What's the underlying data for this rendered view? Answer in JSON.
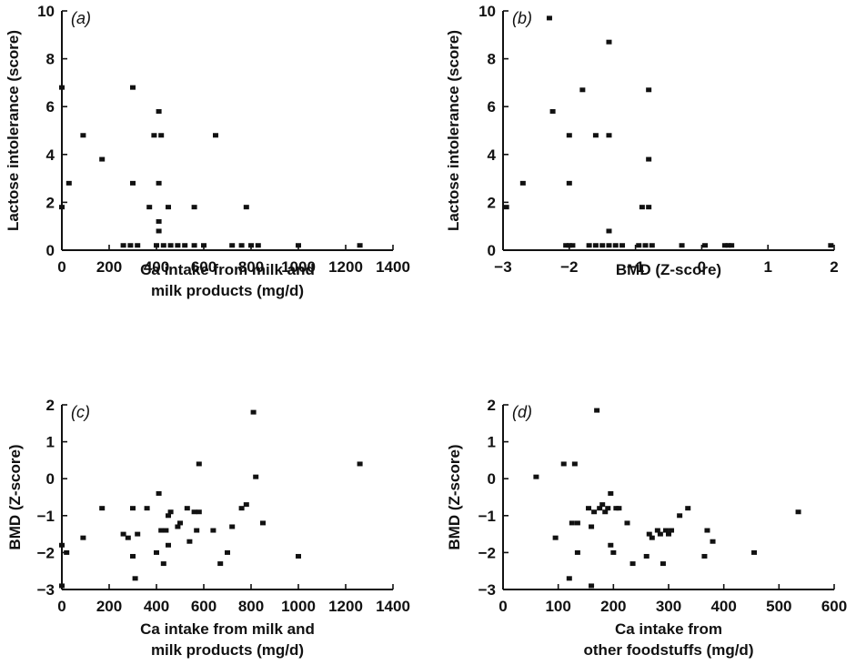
{
  "chart_data": [
    {
      "panel": "(a)",
      "type": "scatter",
      "xlabel": [
        "Ca intake from milk and",
        "milk products (mg/d)"
      ],
      "ylabel": "Lactose intolerance (score)",
      "xlim": [
        0,
        1400
      ],
      "ylim": [
        0,
        10
      ],
      "xticks": [
        0,
        200,
        400,
        600,
        800,
        1000,
        1200,
        1400
      ],
      "yticks": [
        0,
        2,
        4,
        6,
        8,
        10
      ],
      "points": [
        [
          0,
          6.8
        ],
        [
          0,
          1.8
        ],
        [
          30,
          2.8
        ],
        [
          90,
          4.8
        ],
        [
          170,
          3.8
        ],
        [
          300,
          6.8
        ],
        [
          300,
          2.8
        ],
        [
          390,
          4.8
        ],
        [
          410,
          5.8
        ],
        [
          410,
          2.8
        ],
        [
          420,
          4.8
        ],
        [
          410,
          0.8
        ],
        [
          410,
          1.2
        ],
        [
          370,
          1.8
        ],
        [
          450,
          1.8
        ],
        [
          560,
          1.8
        ],
        [
          650,
          4.8
        ],
        [
          780,
          1.8
        ],
        [
          260,
          0.2
        ],
        [
          290,
          0.2
        ],
        [
          320,
          0.2
        ],
        [
          400,
          0.2
        ],
        [
          430,
          0.2
        ],
        [
          460,
          0.2
        ],
        [
          490,
          0.2
        ],
        [
          520,
          0.2
        ],
        [
          560,
          0.2
        ],
        [
          600,
          0.2
        ],
        [
          720,
          0.2
        ],
        [
          760,
          0.2
        ],
        [
          800,
          0.2
        ],
        [
          830,
          0.2
        ],
        [
          1000,
          0.2
        ],
        [
          1260,
          0.2
        ]
      ]
    },
    {
      "panel": "(b)",
      "type": "scatter",
      "xlabel": [
        "BMD (Z-score)"
      ],
      "ylabel": "Lactose intolerance (score)",
      "xlim": [
        -3,
        2
      ],
      "ylim": [
        0,
        10
      ],
      "xticks": [
        -3,
        -2,
        -1,
        0,
        1,
        2
      ],
      "yticks": [
        0,
        2,
        4,
        6,
        8,
        10
      ],
      "points": [
        [
          -2.3,
          9.7
        ],
        [
          -1.4,
          8.7
        ],
        [
          -2.25,
          5.8
        ],
        [
          -1.8,
          6.7
        ],
        [
          -0.8,
          6.7
        ],
        [
          -2,
          4.8
        ],
        [
          -1.6,
          4.8
        ],
        [
          -1.4,
          4.8
        ],
        [
          -0.8,
          3.8
        ],
        [
          -2.7,
          2.8
        ],
        [
          -2,
          2.8
        ],
        [
          -2.95,
          1.8
        ],
        [
          -0.9,
          1.8
        ],
        [
          -0.8,
          1.8
        ],
        [
          -1.4,
          0.8
        ],
        [
          -2.05,
          0.2
        ],
        [
          -2,
          0.2
        ],
        [
          -1.95,
          0.2
        ],
        [
          -1.7,
          0.2
        ],
        [
          -1.6,
          0.2
        ],
        [
          -1.5,
          0.2
        ],
        [
          -1.4,
          0.2
        ],
        [
          -1.3,
          0.2
        ],
        [
          -1.2,
          0.2
        ],
        [
          -0.95,
          0.2
        ],
        [
          -0.85,
          0.2
        ],
        [
          -0.75,
          0.2
        ],
        [
          -0.3,
          0.2
        ],
        [
          0.05,
          0.2
        ],
        [
          0.35,
          0.2
        ],
        [
          0.4,
          0.2
        ],
        [
          0.45,
          0.2
        ],
        [
          1.95,
          0.2
        ]
      ]
    },
    {
      "panel": "(c)",
      "type": "scatter",
      "xlabel": [
        "Ca intake from milk and",
        "milk products (mg/d)"
      ],
      "ylabel": "BMD (Z-score)",
      "xlim": [
        0,
        1400
      ],
      "ylim": [
        -3,
        2
      ],
      "xticks": [
        0,
        200,
        400,
        600,
        800,
        1000,
        1200,
        1400
      ],
      "yticks": [
        -3,
        -2,
        -1,
        0,
        1,
        2
      ],
      "points": [
        [
          0,
          -2.9
        ],
        [
          0,
          -1.8
        ],
        [
          20,
          -2.0
        ],
        [
          90,
          -1.6
        ],
        [
          170,
          -0.8
        ],
        [
          260,
          -1.5
        ],
        [
          280,
          -1.6
        ],
        [
          300,
          -0.8
        ],
        [
          300,
          -2.1
        ],
        [
          310,
          -2.7
        ],
        [
          320,
          -1.5
        ],
        [
          360,
          -0.8
        ],
        [
          400,
          -2.0
        ],
        [
          410,
          -0.4
        ],
        [
          420,
          -1.4
        ],
        [
          430,
          -2.3
        ],
        [
          440,
          -1.4
        ],
        [
          450,
          -1.0
        ],
        [
          450,
          -1.8
        ],
        [
          460,
          -0.9
        ],
        [
          490,
          -1.3
        ],
        [
          500,
          -1.2
        ],
        [
          530,
          -0.8
        ],
        [
          540,
          -1.7
        ],
        [
          560,
          -0.9
        ],
        [
          570,
          -1.4
        ],
        [
          580,
          0.4
        ],
        [
          580,
          -0.9
        ],
        [
          640,
          -1.4
        ],
        [
          670,
          -2.3
        ],
        [
          700,
          -2.0
        ],
        [
          720,
          -1.3
        ],
        [
          760,
          -0.8
        ],
        [
          780,
          -0.7
        ],
        [
          810,
          1.8
        ],
        [
          820,
          0.05
        ],
        [
          850,
          -1.2
        ],
        [
          1000,
          -2.1
        ],
        [
          1260,
          0.4
        ]
      ]
    },
    {
      "panel": "(d)",
      "type": "scatter",
      "xlabel": [
        "Ca intake from",
        "other foodstuffs (mg/d)"
      ],
      "ylabel": "BMD (Z-score)",
      "xlim": [
        0,
        600
      ],
      "ylim": [
        -3,
        2
      ],
      "xticks": [
        0,
        100,
        200,
        300,
        400,
        500,
        600
      ],
      "yticks": [
        -3,
        -2,
        -1,
        0,
        1,
        2
      ],
      "points": [
        [
          60,
          0.05
        ],
        [
          95,
          -1.6
        ],
        [
          110,
          0.4
        ],
        [
          120,
          -2.7
        ],
        [
          125,
          -1.2
        ],
        [
          130,
          0.4
        ],
        [
          135,
          -1.2
        ],
        [
          135,
          -2.0
        ],
        [
          155,
          -0.8
        ],
        [
          160,
          -1.3
        ],
        [
          160,
          -2.9
        ],
        [
          165,
          -0.9
        ],
        [
          170,
          1.85
        ],
        [
          175,
          -0.8
        ],
        [
          180,
          -0.7
        ],
        [
          185,
          -0.9
        ],
        [
          190,
          -0.8
        ],
        [
          195,
          -0.4
        ],
        [
          195,
          -1.8
        ],
        [
          200,
          -2.0
        ],
        [
          205,
          -0.8
        ],
        [
          210,
          -0.8
        ],
        [
          225,
          -1.2
        ],
        [
          235,
          -2.3
        ],
        [
          260,
          -2.1
        ],
        [
          265,
          -1.5
        ],
        [
          270,
          -1.6
        ],
        [
          280,
          -1.4
        ],
        [
          285,
          -1.5
        ],
        [
          290,
          -2.3
        ],
        [
          295,
          -1.4
        ],
        [
          300,
          -1.5
        ],
        [
          305,
          -1.4
        ],
        [
          320,
          -1.0
        ],
        [
          335,
          -0.8
        ],
        [
          365,
          -2.1
        ],
        [
          370,
          -1.4
        ],
        [
          380,
          -1.7
        ],
        [
          455,
          -2.0
        ],
        [
          535,
          -0.9
        ]
      ]
    }
  ]
}
